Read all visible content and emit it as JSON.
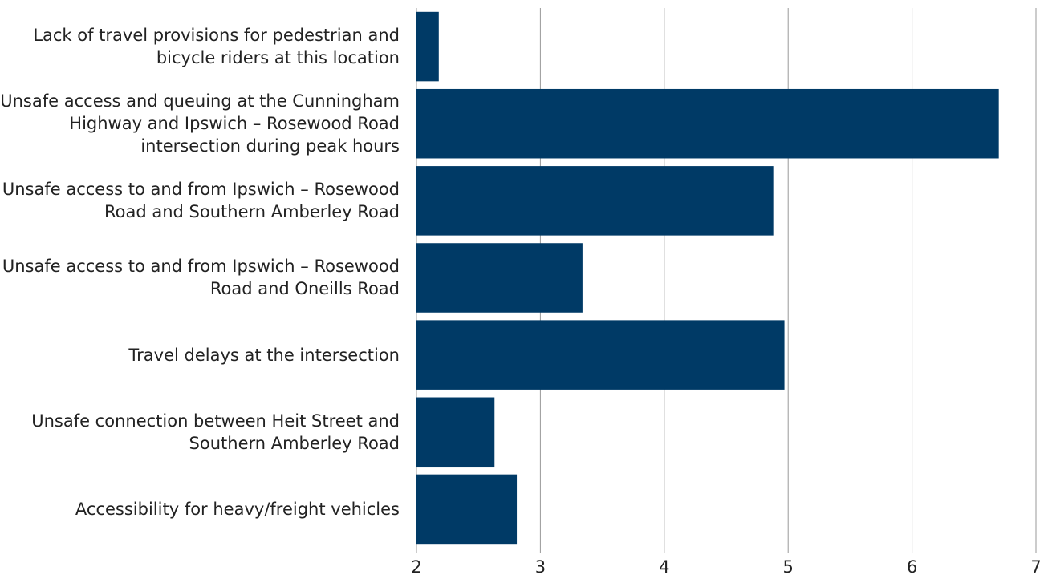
{
  "chart_data": {
    "type": "barh",
    "categories": [
      "Lack of travel provisions for pedestrian and bicycle riders at this location",
      "Unsafe access and queuing at the Cunningham Highway and Ipswich – Rosewood Road intersection during peak hours",
      "Unsafe access to and from Ipswich – Rosewood Road and Southern Amberley Road",
      "Unsafe access to and from Ipswich – Rosewood Road and Oneills Road",
      "Travel delays at the intersection",
      "Unsafe connection between Heit Street and Southern Amberley Road",
      "Accessibility for heavy/freight vehicles"
    ],
    "values": [
      2.18,
      6.7,
      4.88,
      3.34,
      4.97,
      2.63,
      2.81
    ],
    "color": "#003a66",
    "xlim": [
      2,
      7
    ],
    "xticks": [
      2,
      3,
      4,
      5,
      6,
      7
    ],
    "grid": true
  }
}
